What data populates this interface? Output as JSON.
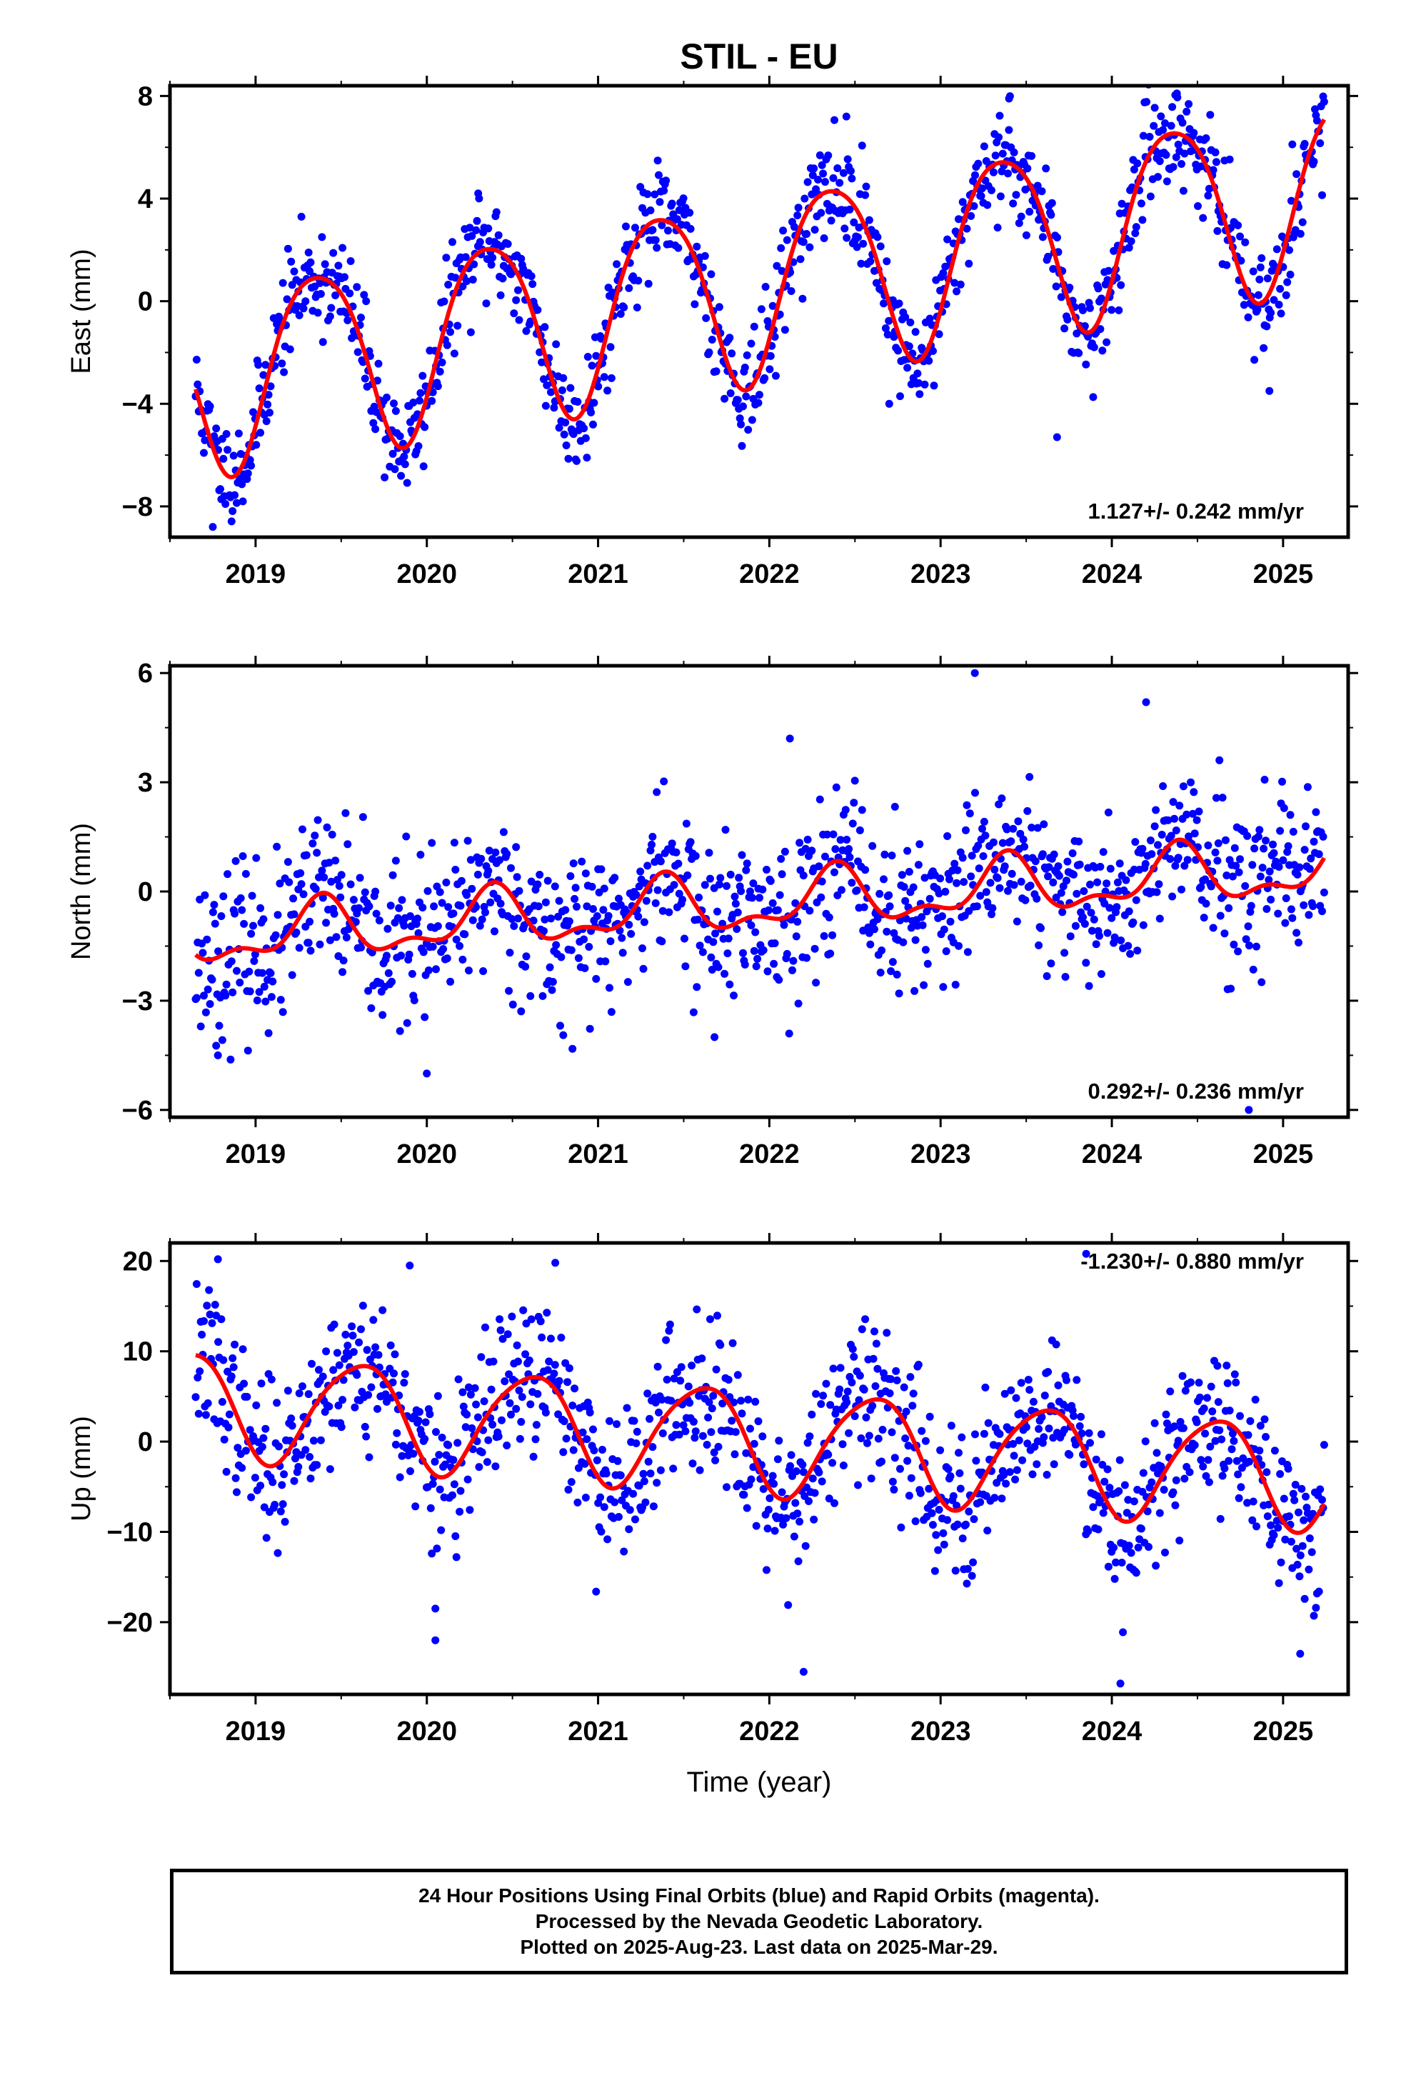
{
  "chart_data": [
    {
      "type": "scatter",
      "title": "STIL - EU",
      "ylabel": "East (mm)",
      "xlabel": "",
      "ylim": [
        -9.2,
        8.4
      ],
      "xlim": [
        2018.5,
        2025.38
      ],
      "yticks": [
        8,
        4,
        0,
        -4,
        -8
      ],
      "ytick_labels": [
        "8",
        "4",
        "0",
        "−4",
        "−8"
      ],
      "xticks": [
        2019,
        2020,
        2021,
        2022,
        2023,
        2024,
        2025
      ],
      "xtick_labels": [
        "2019",
        "2020",
        "2021",
        "2022",
        "2023",
        "2024",
        "2025"
      ],
      "rate_text": "1.127+/- 0.242 mm/yr",
      "model": {
        "start": 2018.65,
        "end": 2025.24,
        "offset": -3.0,
        "slope": 1.127,
        "ref": 2018.65,
        "amp": 3.6,
        "phase_peak": 0.36,
        "amp2": 0.5,
        "phase2": 0.12
      },
      "noise": {
        "sd": 1.0,
        "n": 1100,
        "seed": 11,
        "outliers": [
          [
            2020.3,
            4.2
          ],
          [
            2022.45,
            7.2
          ],
          [
            2023.4,
            7.9
          ],
          [
            2024.38,
            8.1
          ],
          [
            2024.92,
            -3.5
          ],
          [
            2023.68,
            -5.3
          ],
          [
            2022.7,
            -4.0
          ],
          [
            2018.75,
            -8.8
          ]
        ]
      },
      "colors": {
        "points": "#0000ff",
        "model": "#ff0000"
      }
    },
    {
      "type": "scatter",
      "title": "",
      "ylabel": "North (mm)",
      "xlabel": "",
      "ylim": [
        -6.2,
        6.2
      ],
      "xlim": [
        2018.5,
        2025.38
      ],
      "yticks": [
        6,
        3,
        0,
        -3,
        -6
      ],
      "ytick_labels": [
        "6",
        "3",
        "0",
        "−3",
        "−6"
      ],
      "xticks": [
        2019,
        2020,
        2021,
        2022,
        2023,
        2024,
        2025
      ],
      "xtick_labels": [
        "2019",
        "2020",
        "2021",
        "2022",
        "2023",
        "2024",
        "2025"
      ],
      "rate_text": "0.292+/- 0.236 mm/yr",
      "model": {
        "start": 2018.65,
        "end": 2025.24,
        "offset": -1.3,
        "slope": 0.292,
        "ref": 2018.65,
        "amp": 0.7,
        "phase_peak": 0.38,
        "amp2": 0.35,
        "phase2": 0.9
      },
      "noise": {
        "sd": 1.1,
        "n": 1100,
        "seed": 23,
        "outliers": [
          [
            2023.2,
            6.0
          ],
          [
            2024.2,
            5.2
          ],
          [
            2022.12,
            4.2
          ],
          [
            2020.0,
            -5.0
          ],
          [
            2021.68,
            -4.0
          ],
          [
            2024.8,
            -6.0
          ],
          [
            2018.78,
            -4.5
          ]
        ]
      },
      "colors": {
        "points": "#0000ff",
        "model": "#ff0000"
      }
    },
    {
      "type": "scatter",
      "title": "",
      "ylabel": "Up (mm)",
      "xlabel": "Time (year)",
      "ylim": [
        -28,
        22
      ],
      "xlim": [
        2018.5,
        2025.38
      ],
      "yticks": [
        20,
        10,
        0,
        -10,
        -20
      ],
      "ytick_labels": [
        "20",
        "10",
        "0",
        "−10",
        "−20"
      ],
      "xticks": [
        2019,
        2020,
        2021,
        2022,
        2023,
        2024,
        2025
      ],
      "xtick_labels": [
        "2019",
        "2020",
        "2021",
        "2022",
        "2023",
        "2024",
        "2025"
      ],
      "rate_text": "-1.230+/- 0.880 mm/yr",
      "model": {
        "start": 2018.65,
        "end": 2025.24,
        "offset": 4.3,
        "slope": -1.23,
        "ref": 2018.65,
        "amp": 5.8,
        "phase_peak": 0.6,
        "amp2": 0.8,
        "phase2": 0.3
      },
      "noise": {
        "sd": 4.2,
        "n": 1100,
        "seed": 37,
        "outliers": [
          [
            2020.05,
            -22.0
          ],
          [
            2020.05,
            -18.5
          ],
          [
            2022.2,
            -25.5
          ],
          [
            2024.05,
            -26.8
          ],
          [
            2018.78,
            20.2
          ],
          [
            2019.9,
            19.5
          ],
          [
            2023.85,
            20.8
          ],
          [
            2020.75,
            19.8
          ],
          [
            2025.1,
            -23.5
          ]
        ]
      },
      "colors": {
        "points": "#0000ff",
        "model": "#ff0000"
      }
    }
  ],
  "caption": {
    "line1": "24 Hour Positions Using Final Orbits (blue) and Rapid Orbits (magenta).",
    "line2": "Processed by the Nevada Geodetic Laboratory.",
    "line3": "Plotted on 2025-Aug-23. Last data on 2025-Mar-29."
  }
}
